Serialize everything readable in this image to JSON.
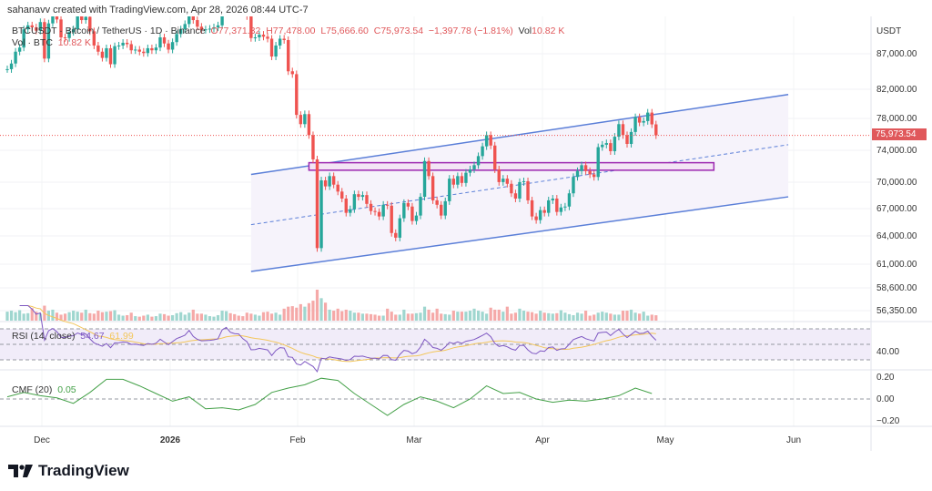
{
  "header": {
    "credit": "sahanavv created with TradingView.com, Apr 28, 2026 08:44 UTC-7"
  },
  "legend": {
    "symbol": "BTCUSDT · Bitcoin / TetherUS · 1D · Binance",
    "open": "O77,371.32",
    "high": "H77,478.00",
    "low": "L75,666.60",
    "close": "C75,973.54",
    "change": "−1,397.78 (−1.81%)",
    "vol_label": "Vol",
    "vol_value": "10.82 K",
    "vol_row_label": "Vol · BTC",
    "vol_row_value": "10.82 K"
  },
  "rsi": {
    "label": "RSI (14, close)",
    "value": "54.67",
    "ma_value": "61.99",
    "axis_label": "40.00"
  },
  "cmf": {
    "label": "CMF (20)",
    "value": "0.05",
    "axis_labels": [
      "0.20",
      "0.00",
      "−0.20"
    ]
  },
  "price_axis": {
    "currency": "USDT",
    "ticks": [
      "87,000.00",
      "82,000.00",
      "78,000.00",
      "74,000.00",
      "70,000.00",
      "67,000.00",
      "64,000.00",
      "61,000.00",
      "58,600.00",
      "56,350.00"
    ],
    "last_price": "75,973.54"
  },
  "time_axis": {
    "ticks": [
      "Dec",
      "2026",
      "Feb",
      "Mar",
      "Apr",
      "May",
      "Jun"
    ]
  },
  "logo": {
    "text": "TradingView"
  },
  "colors": {
    "up": "#26a69a",
    "down": "#ef5350",
    "channel": "#5b7fd8",
    "zone": "#9c27b0",
    "rsi": "#7e57c2",
    "rsi_ma": "#f3c65a",
    "cmf": "#43a047"
  },
  "chart_data": {
    "type": "candlestick",
    "symbol": "BTCUSDT",
    "interval": "1D",
    "scale": "log",
    "x_range": [
      "2025-11-22",
      "2026-04-28"
    ],
    "y_ticks": [
      87000,
      82000,
      78000,
      74000,
      70000,
      67000,
      64000,
      61000,
      58600,
      56350
    ],
    "last_open": 77371.32,
    "last_high": 77478.0,
    "last_low": 75666.6,
    "last_close": 75973.54,
    "closes": [
      84800,
      85600,
      87300,
      87900,
      90600,
      91200,
      90900,
      90400,
      91700,
      86300,
      91500,
      93400,
      92100,
      89400,
      89300,
      90200,
      90600,
      92700,
      92000,
      92500,
      90300,
      88200,
      87300,
      86400,
      87800,
      85500,
      88100,
      88200,
      88600,
      88400,
      87500,
      87600,
      87300,
      87100,
      87800,
      87500,
      87900,
      89400,
      88500,
      87600,
      88700,
      89900,
      90600,
      91400,
      93800,
      92000,
      91000,
      90500,
      90600,
      90700,
      90900,
      91200,
      95300,
      96900,
      95500,
      95100,
      95000,
      93600,
      92600,
      89300,
      89400,
      89800,
      89500,
      89200,
      86600,
      88200,
      89200,
      89000,
      84500,
      84100,
      78600,
      77400,
      78700,
      76000,
      73000,
      63000,
      70500,
      69800,
      71000,
      70000,
      69200,
      68400,
      66800,
      67200,
      68900,
      68600,
      68800,
      67800,
      67000,
      66900,
      66400,
      67700,
      67600,
      64600,
      64100,
      66200,
      67900,
      67500,
      65900,
      66500,
      68600,
      72800,
      71000,
      68200,
      67700,
      66500,
      68100,
      70700,
      70000,
      71000,
      70200,
      71400,
      71800,
      72300,
      73400,
      74600,
      76000,
      74700,
      71800,
      70300,
      70700,
      70100,
      69000,
      68400,
      70300,
      70400,
      68200,
      66400,
      66000,
      67100,
      66800,
      68200,
      68400,
      66900,
      67400,
      67500,
      69000,
      70900,
      71600,
      72300,
      71600,
      71200,
      70900,
      74500,
      74800,
      75000,
      74000,
      75800,
      77400,
      76000,
      74900,
      76400,
      78300,
      77600,
      77800,
      78900,
      77371.32,
      75973.54
    ],
    "volume_k_btc": [
      18,
      20,
      17,
      21,
      14,
      15,
      25,
      18,
      14,
      30,
      20,
      22,
      16,
      12,
      14,
      17,
      20,
      18,
      16,
      22,
      15,
      14,
      20,
      17,
      18,
      19,
      21,
      12,
      10,
      11,
      16,
      9,
      8,
      10,
      12,
      8,
      9,
      14,
      13,
      10,
      11,
      15,
      17,
      12,
      16,
      22,
      14,
      14,
      12,
      9,
      8,
      11,
      20,
      19,
      15,
      13,
      10,
      9,
      16,
      14,
      12,
      10,
      17,
      18,
      14,
      16,
      12,
      24,
      28,
      29,
      26,
      33,
      28,
      35,
      40,
      62,
      45,
      36,
      22,
      20,
      24,
      19,
      22,
      20,
      16,
      16,
      14,
      14,
      13,
      12,
      10,
      10,
      24,
      18,
      12,
      12,
      22,
      14,
      14,
      15,
      16,
      28,
      22,
      16,
      24,
      14,
      13,
      12,
      20,
      18,
      18,
      18,
      20,
      24,
      20,
      18,
      14,
      26,
      22,
      22,
      18,
      28,
      14,
      16,
      24,
      20,
      18,
      17,
      14,
      20,
      16,
      15,
      14,
      15,
      21,
      16,
      13,
      11,
      16,
      14,
      20,
      10,
      12,
      16,
      18,
      16,
      14,
      12,
      12,
      20,
      20,
      22,
      16,
      14,
      18,
      10,
      12,
      10.82
    ],
    "cmf_every_4_days": [
      0.02,
      0.06,
      0.03,
      0.01,
      -0.04,
      0.06,
      0.18,
      0.18,
      0.12,
      0.05,
      -0.02,
      0.02,
      -0.09,
      -0.08,
      -0.1,
      -0.05,
      0.06,
      0.1,
      0.13,
      0.19,
      0.17,
      0.05,
      -0.05,
      -0.15,
      -0.05,
      0.02,
      -0.02,
      -0.08,
      0.0,
      0.12,
      0.05,
      0.06,
      0.0,
      -0.03,
      -0.01,
      -0.02,
      0.0,
      0.03,
      0.1,
      0.05
    ],
    "channel": {
      "upper": [
        [
          "2026-01-20",
          71200
        ],
        [
          "2026-05-30",
          81300
        ]
      ],
      "middle": [
        [
          "2026-01-20",
          65500
        ],
        [
          "2026-05-30",
          74800
        ]
      ],
      "lower": [
        [
          "2026-01-20",
          60600
        ],
        [
          "2026-05-30",
          68600
        ]
      ]
    },
    "zone": {
      "from": "2026-02-03",
      "to": "2026-05-12",
      "top": 72600,
      "bottom": 71700
    },
    "rsi_levels": [
      70,
      50,
      30
    ],
    "cmf_zero": 0
  }
}
